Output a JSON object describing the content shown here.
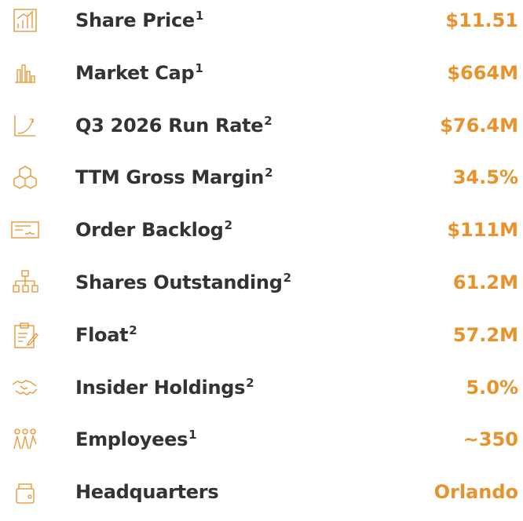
{
  "rows": [
    {
      "label": "Share Price",
      "note": "1",
      "value": "$11.51"
    },
    {
      "label": "Market Cap",
      "note": "1",
      "value": "$664M"
    },
    {
      "label": "Q3 2026 Run Rate",
      "note": "2",
      "value": "$76.4M"
    },
    {
      "label": "TTM Gross Margin",
      "note": "2",
      "value": "34.5%"
    },
    {
      "label": "Order Backlog",
      "note": "2",
      "value": "$111M"
    },
    {
      "label": "Shares Outstanding",
      "note": "2",
      "value": "61.2M"
    },
    {
      "label": "Float",
      "note": "2",
      "value": "57.2M"
    },
    {
      "label": "Insider Holdings",
      "note": "2",
      "value": "5.0%"
    },
    {
      "label": "Employees",
      "note": "1",
      "value": "~350"
    },
    {
      "label": "Headquarters",
      "value": "Orlando"
    }
  ]
}
